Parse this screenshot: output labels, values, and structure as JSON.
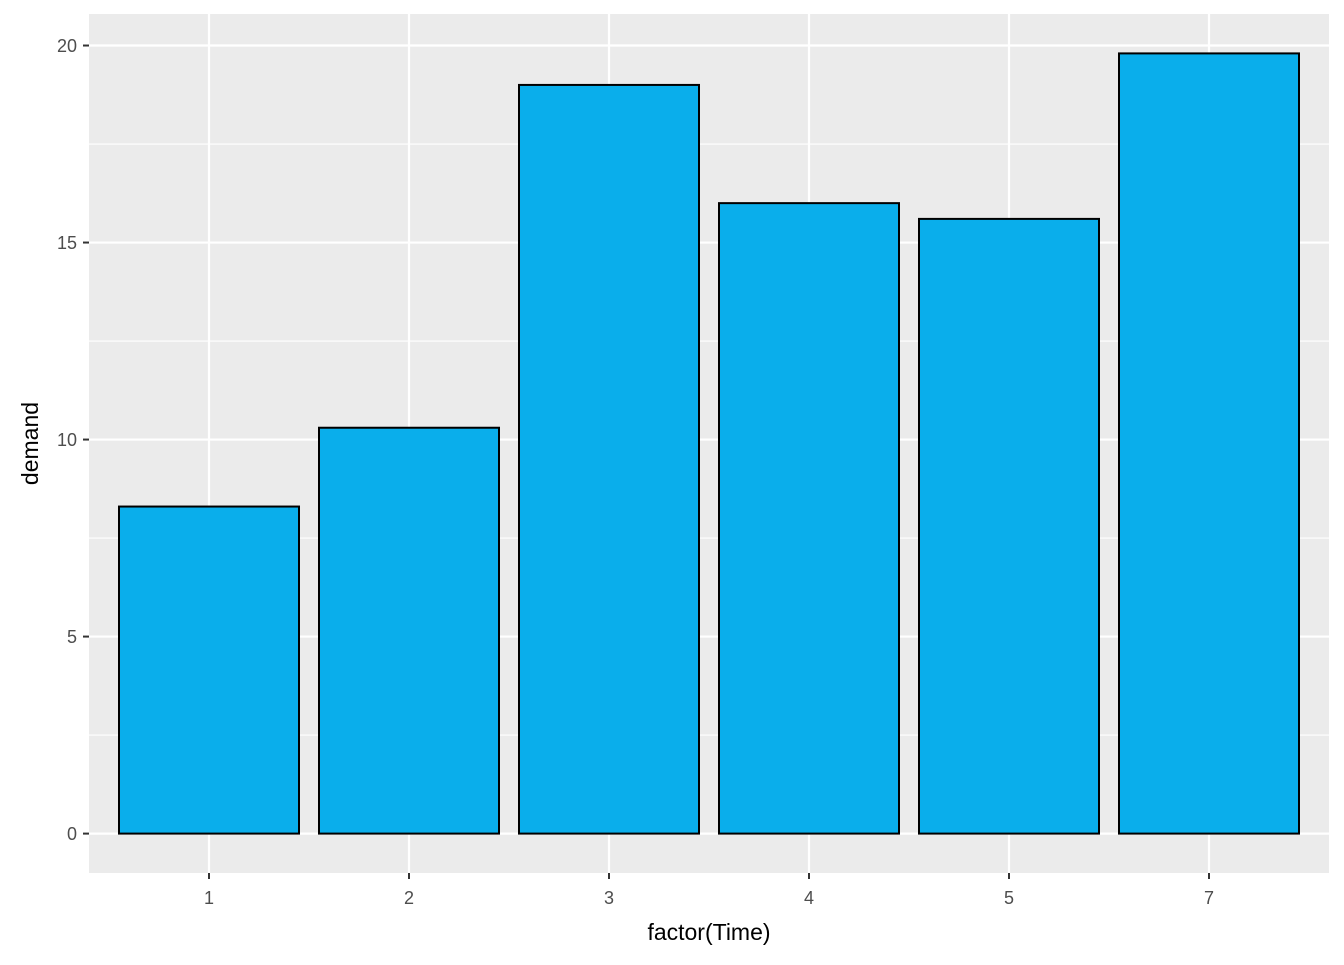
{
  "chart_data": {
    "type": "bar",
    "title": "",
    "xlabel": "factor(Time)",
    "ylabel": "demand",
    "categories": [
      "1",
      "2",
      "3",
      "4",
      "5",
      "7"
    ],
    "values": [
      8.3,
      10.3,
      19.0,
      16.0,
      15.6,
      19.8
    ],
    "ylim": [
      -1.0,
      20.8
    ],
    "yticks": [
      0,
      5,
      10,
      15,
      20
    ],
    "grid": true,
    "legend": "none",
    "colors": {
      "bar_fill": "#0AAEEB",
      "bar_stroke": "#000000",
      "panel_background": "#EBEBEB",
      "grid_line": "#FFFFFF",
      "tick_label": "#4D4D4D",
      "axis_title": "#000000"
    }
  }
}
